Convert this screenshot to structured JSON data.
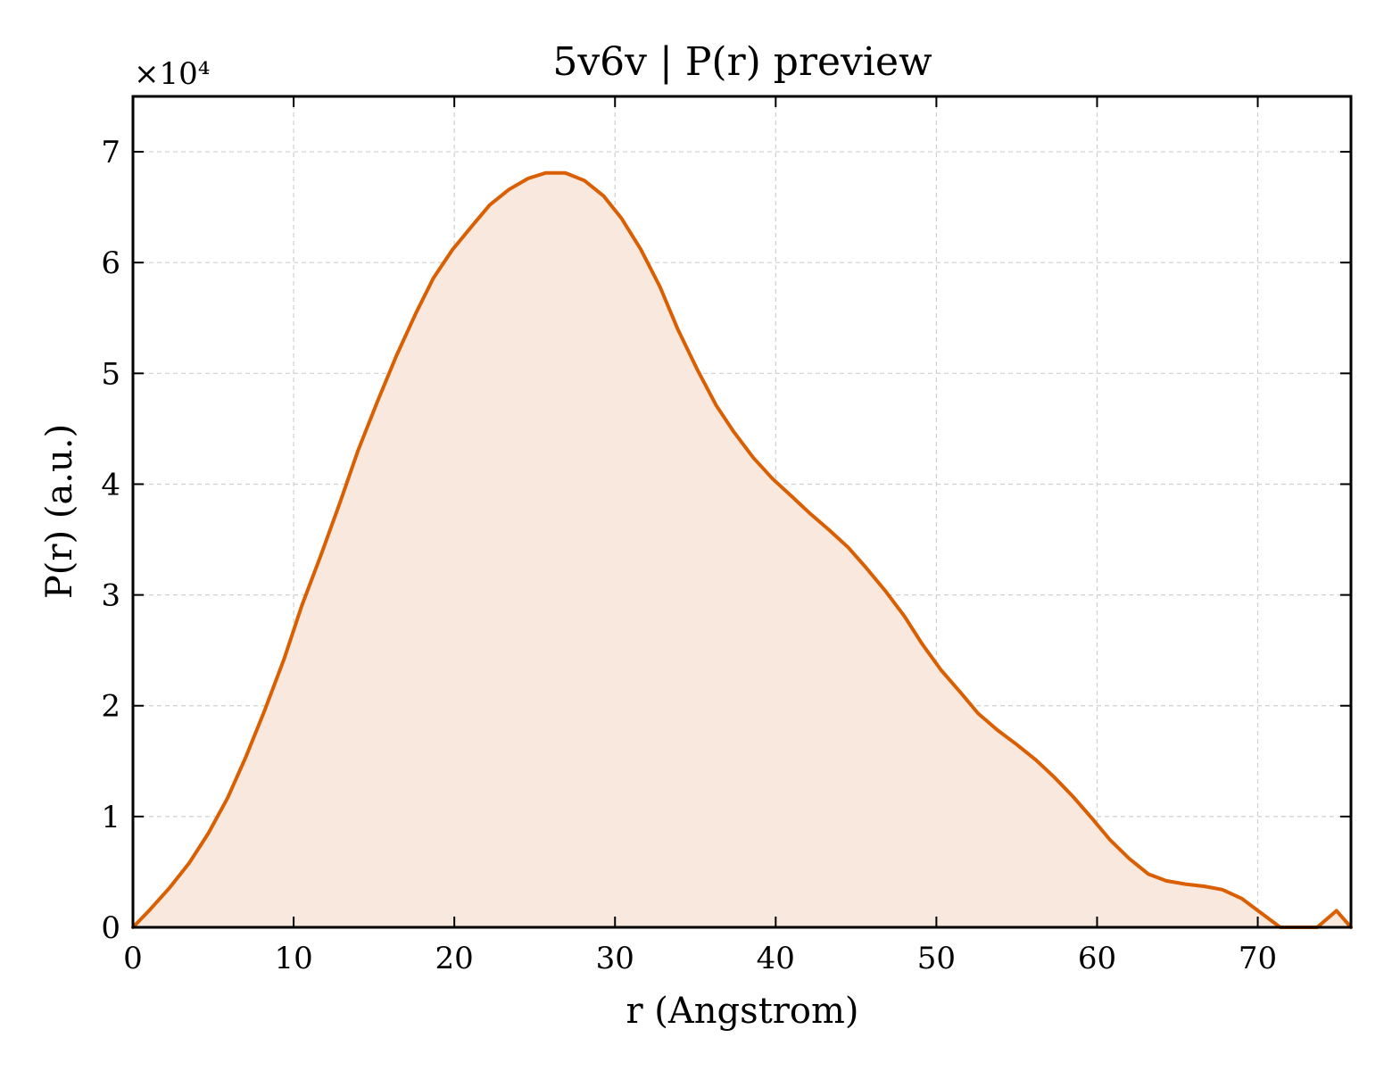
{
  "chart_data": {
    "type": "area",
    "title": "5v6v | P(r) preview",
    "xlabel": "r (Angstrom)",
    "ylabel": "P(r) (a.u.)",
    "y_offset_label": "×10⁴",
    "xlim": [
      0,
      75.8
    ],
    "ylim": [
      0,
      7.5
    ],
    "x_ticks": [
      0,
      10,
      20,
      30,
      40,
      50,
      60,
      70
    ],
    "y_ticks": [
      0,
      1,
      2,
      3,
      4,
      5,
      6,
      7
    ],
    "x_tick_labels": [
      "0",
      "10",
      "20",
      "30",
      "40",
      "50",
      "60",
      "70"
    ],
    "y_tick_labels": [
      "0",
      "1",
      "2",
      "3",
      "4",
      "5",
      "6",
      "7"
    ],
    "grid": true,
    "line_color": "#d95f02",
    "fill_color": "#f8e8dd",
    "series": [
      {
        "x": [
          0,
          1,
          2.3,
          3.5,
          4.7,
          5.9,
          7.0,
          8.2,
          9.4,
          10.5,
          11.7,
          12.9,
          14.0,
          15.2,
          16.4,
          17.6,
          18.7,
          19.9,
          21.1,
          22.2,
          23.4,
          24.6,
          25.7,
          26.9,
          28.1,
          29.3,
          30.4,
          31.6,
          32.8,
          33.9,
          35.1,
          36.3,
          37.4,
          38.6,
          39.8,
          41.0,
          42.1,
          43.3,
          44.5,
          45.6,
          46.8,
          48.0,
          49.1,
          50.3,
          51.5,
          52.6,
          53.8,
          55.0,
          56.2,
          57.3,
          58.5,
          59.7,
          60.8,
          62.0,
          63.2,
          64.3,
          65.5,
          66.7,
          67.8,
          69.0,
          70.2,
          71.4,
          72.5,
          73.7,
          74.9,
          75.8
        ],
        "y": [
          0,
          0.15,
          0.36,
          0.58,
          0.85,
          1.17,
          1.53,
          1.96,
          2.42,
          2.9,
          3.36,
          3.84,
          4.3,
          4.74,
          5.16,
          5.54,
          5.86,
          6.12,
          6.33,
          6.52,
          6.66,
          6.76,
          6.81,
          6.81,
          6.74,
          6.6,
          6.4,
          6.12,
          5.78,
          5.4,
          5.04,
          4.71,
          4.47,
          4.24,
          4.05,
          3.89,
          3.74,
          3.59,
          3.43,
          3.25,
          3.04,
          2.81,
          2.56,
          2.32,
          2.12,
          1.93,
          1.78,
          1.65,
          1.51,
          1.36,
          1.18,
          0.98,
          0.79,
          0.62,
          0.48,
          0.42,
          0.39,
          0.37,
          0.34,
          0.26,
          0.13,
          0,
          -0.05,
          0,
          0.15,
          0
        ]
      }
    ]
  }
}
